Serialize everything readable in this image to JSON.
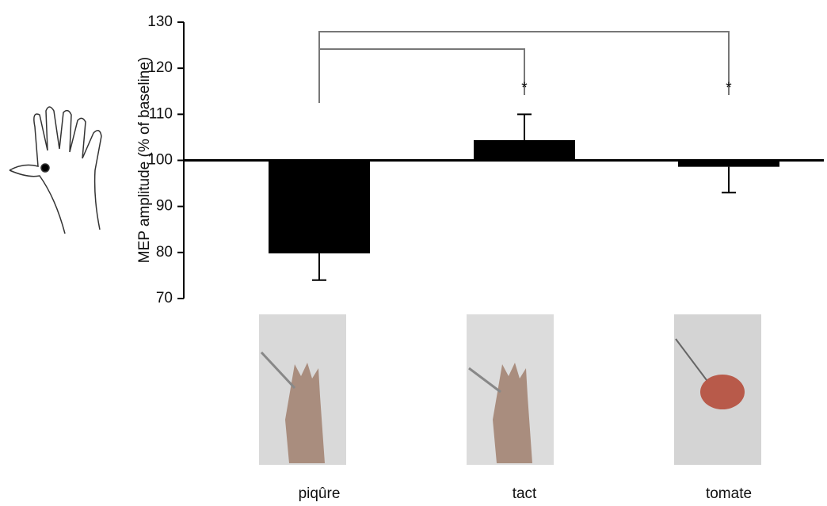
{
  "chart_data": {
    "type": "bar",
    "y_label": "MEP amplitude (% of baseline)",
    "categories": [
      "piqûre",
      "tact",
      "tomate"
    ],
    "values": [
      79.8,
      104.4,
      98.6
    ],
    "errors": [
      5.8,
      5.6,
      5.6
    ],
    "color": "#000000",
    "baseline": 100,
    "ylim": [
      70,
      130
    ],
    "yticks": [
      70,
      80,
      90,
      100,
      110,
      120,
      130
    ],
    "annotations": [
      "*",
      "*"
    ]
  }
}
